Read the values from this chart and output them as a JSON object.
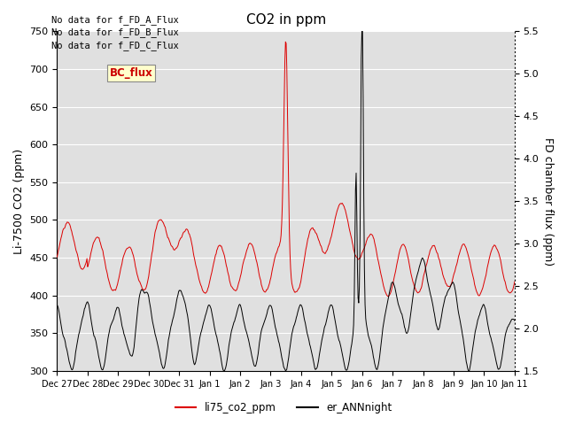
{
  "title": "CO2 in ppm",
  "ylabel_left": "Li-7500 CO2 (ppm)",
  "ylabel_right": "FD chamber flux (ppm)",
  "ylim_left": [
    300,
    750
  ],
  "ylim_right": [
    1.5,
    5.5
  ],
  "yticks_left": [
    300,
    350,
    400,
    450,
    500,
    550,
    600,
    650,
    700,
    750
  ],
  "yticks_right": [
    1.5,
    2.0,
    2.5,
    3.0,
    3.5,
    4.0,
    4.5,
    5.0,
    5.5
  ],
  "xtick_labels": [
    "Dec 27",
    "Dec 28",
    "Dec 29",
    "Dec 30",
    "Dec 31",
    "Jan 1",
    "Jan 2",
    "Jan 3",
    "Jan 4",
    "Jan 5",
    "Jan 6",
    "Jan 7",
    "Jan 8",
    "Jan 9",
    "Jan 10",
    "Jan 11"
  ],
  "legend_text_lines": [
    "No data for f_FD_A_Flux",
    "No data for f_FD_B_Flux",
    "No data for f_FD_C_Flux"
  ],
  "legend_box_label": "BC_flux",
  "legend_box_color": "#cc0000",
  "legend_box_bg": "#ffffcc",
  "bg_color": "#e8e8e8",
  "grid_color": "#ffffff",
  "title_fontsize": 11,
  "label_fontsize": 9,
  "tick_fontsize": 8
}
